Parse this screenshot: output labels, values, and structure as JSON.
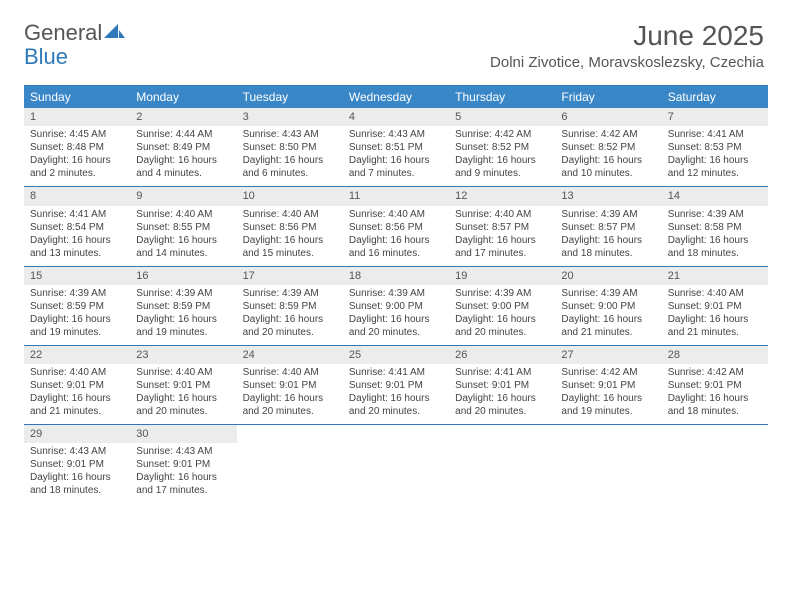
{
  "brand": {
    "word1": "General",
    "word2": "Blue",
    "word1_color": "#555555",
    "word2_color": "#2f78b9"
  },
  "title": "June 2025",
  "location": "Dolni Zivotice, Moravskoslezsky, Czechia",
  "colors": {
    "header_bg": "#3a87c8",
    "border": "#2f78b9",
    "daynum_bg": "#ececec",
    "page_bg": "#ffffff"
  },
  "columns": [
    "Sunday",
    "Monday",
    "Tuesday",
    "Wednesday",
    "Thursday",
    "Friday",
    "Saturday"
  ],
  "weeks": [
    [
      {
        "n": "1",
        "sr": "4:45 AM",
        "ss": "8:48 PM",
        "dl": "16 hours and 2 minutes."
      },
      {
        "n": "2",
        "sr": "4:44 AM",
        "ss": "8:49 PM",
        "dl": "16 hours and 4 minutes."
      },
      {
        "n": "3",
        "sr": "4:43 AM",
        "ss": "8:50 PM",
        "dl": "16 hours and 6 minutes."
      },
      {
        "n": "4",
        "sr": "4:43 AM",
        "ss": "8:51 PM",
        "dl": "16 hours and 7 minutes."
      },
      {
        "n": "5",
        "sr": "4:42 AM",
        "ss": "8:52 PM",
        "dl": "16 hours and 9 minutes."
      },
      {
        "n": "6",
        "sr": "4:42 AM",
        "ss": "8:52 PM",
        "dl": "16 hours and 10 minutes."
      },
      {
        "n": "7",
        "sr": "4:41 AM",
        "ss": "8:53 PM",
        "dl": "16 hours and 12 minutes."
      }
    ],
    [
      {
        "n": "8",
        "sr": "4:41 AM",
        "ss": "8:54 PM",
        "dl": "16 hours and 13 minutes."
      },
      {
        "n": "9",
        "sr": "4:40 AM",
        "ss": "8:55 PM",
        "dl": "16 hours and 14 minutes."
      },
      {
        "n": "10",
        "sr": "4:40 AM",
        "ss": "8:56 PM",
        "dl": "16 hours and 15 minutes."
      },
      {
        "n": "11",
        "sr": "4:40 AM",
        "ss": "8:56 PM",
        "dl": "16 hours and 16 minutes."
      },
      {
        "n": "12",
        "sr": "4:40 AM",
        "ss": "8:57 PM",
        "dl": "16 hours and 17 minutes."
      },
      {
        "n": "13",
        "sr": "4:39 AM",
        "ss": "8:57 PM",
        "dl": "16 hours and 18 minutes."
      },
      {
        "n": "14",
        "sr": "4:39 AM",
        "ss": "8:58 PM",
        "dl": "16 hours and 18 minutes."
      }
    ],
    [
      {
        "n": "15",
        "sr": "4:39 AM",
        "ss": "8:59 PM",
        "dl": "16 hours and 19 minutes."
      },
      {
        "n": "16",
        "sr": "4:39 AM",
        "ss": "8:59 PM",
        "dl": "16 hours and 19 minutes."
      },
      {
        "n": "17",
        "sr": "4:39 AM",
        "ss": "8:59 PM",
        "dl": "16 hours and 20 minutes."
      },
      {
        "n": "18",
        "sr": "4:39 AM",
        "ss": "9:00 PM",
        "dl": "16 hours and 20 minutes."
      },
      {
        "n": "19",
        "sr": "4:39 AM",
        "ss": "9:00 PM",
        "dl": "16 hours and 20 minutes."
      },
      {
        "n": "20",
        "sr": "4:39 AM",
        "ss": "9:00 PM",
        "dl": "16 hours and 21 minutes."
      },
      {
        "n": "21",
        "sr": "4:40 AM",
        "ss": "9:01 PM",
        "dl": "16 hours and 21 minutes."
      }
    ],
    [
      {
        "n": "22",
        "sr": "4:40 AM",
        "ss": "9:01 PM",
        "dl": "16 hours and 21 minutes."
      },
      {
        "n": "23",
        "sr": "4:40 AM",
        "ss": "9:01 PM",
        "dl": "16 hours and 20 minutes."
      },
      {
        "n": "24",
        "sr": "4:40 AM",
        "ss": "9:01 PM",
        "dl": "16 hours and 20 minutes."
      },
      {
        "n": "25",
        "sr": "4:41 AM",
        "ss": "9:01 PM",
        "dl": "16 hours and 20 minutes."
      },
      {
        "n": "26",
        "sr": "4:41 AM",
        "ss": "9:01 PM",
        "dl": "16 hours and 20 minutes."
      },
      {
        "n": "27",
        "sr": "4:42 AM",
        "ss": "9:01 PM",
        "dl": "16 hours and 19 minutes."
      },
      {
        "n": "28",
        "sr": "4:42 AM",
        "ss": "9:01 PM",
        "dl": "16 hours and 18 minutes."
      }
    ],
    [
      {
        "n": "29",
        "sr": "4:43 AM",
        "ss": "9:01 PM",
        "dl": "16 hours and 18 minutes."
      },
      {
        "n": "30",
        "sr": "4:43 AM",
        "ss": "9:01 PM",
        "dl": "16 hours and 17 minutes."
      },
      null,
      null,
      null,
      null,
      null
    ]
  ],
  "labels": {
    "sunrise": "Sunrise: ",
    "sunset": "Sunset: ",
    "daylight": "Daylight: "
  }
}
